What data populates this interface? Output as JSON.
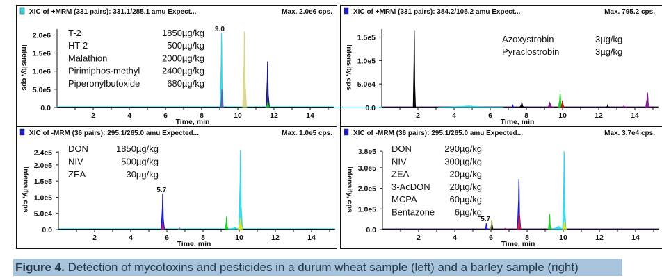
{
  "figure": {
    "caption_label": "Figure 4.",
    "caption_text": " Detection of mycotoxins and pesticides in a durum wheat sample (left) and a barley sample (right)",
    "caption_bg": "#a8c4dd"
  },
  "chart_data": [
    {
      "type": "line",
      "header": "XIC of +MRM (331 pairs): 331.1/285.1 amu Expect...",
      "max_label": "Max. 2.0e6 cps.",
      "marker_color": "#33d6e6",
      "xlabel": "Time, min",
      "ylabel": "Intensity, cps",
      "xlim": [
        0,
        15.3
      ],
      "ylim": [
        0,
        2200000
      ],
      "xticks": [
        2,
        4,
        6,
        8,
        10,
        12,
        14
      ],
      "yticks": [
        {
          "v": 0,
          "label": "0.0"
        },
        {
          "v": 500000,
          "label": "5.0e5"
        },
        {
          "v": 1000000,
          "label": "1.0e6"
        },
        {
          "v": 1500000,
          "label": "1.5e6"
        },
        {
          "v": 2000000,
          "label": "2.0e6"
        }
      ],
      "legend": [
        {
          "name": "T-2",
          "value": "1850µg/kg"
        },
        {
          "name": "HT-2",
          "value": "500µg/kg"
        },
        {
          "name": "Malathion",
          "value": "2000µg/kg"
        },
        {
          "name": "Pirimiphos-methyl",
          "value": "2400µg/kg"
        },
        {
          "name": "Piperonylbutoxide",
          "value": "680µg/kg"
        }
      ],
      "annotations": [
        {
          "x": 9.0,
          "y": 2050000,
          "text": "9.0"
        }
      ],
      "peaks": [
        {
          "color": "#33d6e6",
          "rt": 9.1,
          "height": 2050000,
          "width": 0.06
        },
        {
          "color": "#6a5aa8",
          "rt": 9.12,
          "height": 500000,
          "width": 0.05
        },
        {
          "color": "#d6d68a",
          "rt": 10.37,
          "height": 2100000,
          "width": 0.07
        },
        {
          "color": "#1a1a80",
          "rt": 11.65,
          "height": 1270000,
          "width": 0.06
        },
        {
          "color": "#33cc33",
          "rt": 11.66,
          "height": 150000,
          "width": 0.05
        }
      ]
    },
    {
      "type": "line",
      "header": "XIC of +MRM (331 pairs): 384.2/105.2 amu Expect...",
      "max_label": "Max. 795.2 cps.",
      "marker_color": "#1a1acc",
      "xlabel": "Time, min",
      "ylabel": "Intensity, cps",
      "xlim": [
        0,
        15.3
      ],
      "ylim": [
        0,
        170000
      ],
      "xticks": [
        2,
        4,
        6,
        8,
        10,
        12,
        14
      ],
      "yticks": [
        {
          "v": 0,
          "label": "0.0"
        },
        {
          "v": 50000,
          "label": "5.0e4"
        },
        {
          "v": 100000,
          "label": "1.0e5"
        },
        {
          "v": 150000,
          "label": "1.5e5"
        }
      ],
      "legend": [
        {
          "name": "Azoxystrobin",
          "value": "3µg/kg"
        },
        {
          "name": "Pyraclostrobin",
          "value": "3µg/kg"
        }
      ],
      "annotations": [],
      "peaks": [
        {
          "color": "#33d6e6",
          "rt": 4.8,
          "height": 3000,
          "width": 1.2
        },
        {
          "color": "#000000",
          "rt": 1.8,
          "height": 165000,
          "width": 0.04
        },
        {
          "color": "#000000",
          "rt": 7.75,
          "height": 10000,
          "width": 0.08
        },
        {
          "color": "#1a1acc",
          "rt": 7.25,
          "height": 6000,
          "width": 0.03
        },
        {
          "color": "#7a1a8a",
          "rt": 9.3,
          "height": 10000,
          "width": 0.08
        },
        {
          "color": "#22cc22",
          "rt": 9.87,
          "height": 30000,
          "width": 0.07
        },
        {
          "color": "#b01a1a",
          "rt": 10.0,
          "height": 15000,
          "width": 0.06
        },
        {
          "color": "#000000",
          "rt": 12.5,
          "height": 5000,
          "width": 0.05
        },
        {
          "color": "#7a1a8a",
          "rt": 13.4,
          "height": 4000,
          "width": 0.04
        },
        {
          "color": "#7a1a8a",
          "rt": 14.7,
          "height": 32000,
          "width": 0.07
        }
      ]
    },
    {
      "type": "line",
      "header": "XIC of -MRM (36 pairs): 295.1/265.0 amu Expected...",
      "max_label": "Max. 1.0e5 cps.",
      "marker_color": "#1a1acc",
      "xlabel": "Time, min",
      "ylabel": "Intensity, cps",
      "xlim": [
        0,
        15.3
      ],
      "ylim": [
        0,
        247000
      ],
      "xticks": [
        2,
        4,
        6,
        8,
        10,
        12,
        14
      ],
      "yticks": [
        {
          "v": 0,
          "label": "0.0"
        },
        {
          "v": 50000,
          "label": "5.0e4"
        },
        {
          "v": 100000,
          "label": "1.0e5"
        },
        {
          "v": 150000,
          "label": "1.5e5"
        },
        {
          "v": 200000,
          "label": "2.0e5"
        },
        {
          "v": 240000,
          "label": "2.4e5"
        }
      ],
      "legend": [
        {
          "name": "DON",
          "value": "1850µg/kg"
        },
        {
          "name": "NIV",
          "value": "500µg/kg"
        },
        {
          "name": "ZEA",
          "value": "30µg/kg"
        }
      ],
      "annotations": [
        {
          "x": 5.7,
          "y": 110000,
          "text": "5.7"
        }
      ],
      "peaks": [
        {
          "color": "#1a1acc",
          "rt": 5.77,
          "height": 110000,
          "width": 0.06
        },
        {
          "color": "#c0208a",
          "rt": 5.78,
          "height": 20000,
          "width": 0.05
        },
        {
          "color": "#6a6aa8",
          "rt": 6.7,
          "height": 5000,
          "width": 0.05
        },
        {
          "color": "#22cc22",
          "rt": 9.3,
          "height": 40000,
          "width": 0.05
        },
        {
          "color": "#33d6e6",
          "rt": 9.75,
          "height": 6000,
          "width": 0.25
        },
        {
          "color": "#33d6e6",
          "rt": 10.07,
          "height": 245000,
          "width": 0.07
        },
        {
          "color": "#e6e61a",
          "rt": 10.07,
          "height": 35000,
          "width": 0.08
        }
      ]
    },
    {
      "type": "line",
      "header": "XIC of -MRM (36 pairs): 295.1/265.0 amu Expected...",
      "max_label": "Max. 3.7e4 cps.",
      "marker_color": "#1a1acc",
      "xlabel": "Time, min",
      "ylabel": "Intensity, cps",
      "xlim": [
        0,
        15.3
      ],
      "ylim": [
        0,
        387000
      ],
      "xticks": [
        2,
        4,
        6,
        8,
        10,
        12,
        14
      ],
      "yticks": [
        {
          "v": 0,
          "label": "0.0"
        },
        {
          "v": 100000,
          "label": "1.0e5"
        },
        {
          "v": 200000,
          "label": "2.0e5"
        },
        {
          "v": 300000,
          "label": "3.0e5"
        },
        {
          "v": 380000,
          "label": "3.8e5"
        }
      ],
      "legend": [
        {
          "name": "DON",
          "value": "290µg/kg"
        },
        {
          "name": "NIV",
          "value": "300µg/kg"
        },
        {
          "name": "ZEA",
          "value": "20µg/kg"
        },
        {
          "name": "3-AcDON",
          "value": "20µg/kg"
        },
        {
          "name": "MCPA",
          "value": "60µg/kg"
        },
        {
          "name": "Bentazone",
          "value": "6µg/kg"
        }
      ],
      "annotations": [
        {
          "x": 5.7,
          "y": 30000,
          "text": "5.7"
        }
      ],
      "peaks": [
        {
          "color": "#1a1acc",
          "rt": 5.75,
          "height": 30000,
          "width": 0.05
        },
        {
          "color": "#8a8a1a",
          "rt": 6.05,
          "height": 45000,
          "width": 0.05
        },
        {
          "color": "#000000",
          "rt": 6.07,
          "height": 20000,
          "width": 0.03
        },
        {
          "color": "#7a1a5a",
          "rt": 6.8,
          "height": 5000,
          "width": 0.06
        },
        {
          "color": "#1a1acc",
          "rt": 7.55,
          "height": 245000,
          "width": 0.06
        },
        {
          "color": "#e0203a",
          "rt": 7.56,
          "height": 80000,
          "width": 0.05
        },
        {
          "color": "#22cc22",
          "rt": 9.25,
          "height": 75000,
          "width": 0.05
        },
        {
          "color": "#33d6e6",
          "rt": 9.75,
          "height": 15000,
          "width": 0.3
        },
        {
          "color": "#33d6e6",
          "rt": 10.05,
          "height": 380000,
          "width": 0.06
        },
        {
          "color": "#e6e61a",
          "rt": 10.07,
          "height": 40000,
          "width": 0.07
        }
      ]
    }
  ]
}
